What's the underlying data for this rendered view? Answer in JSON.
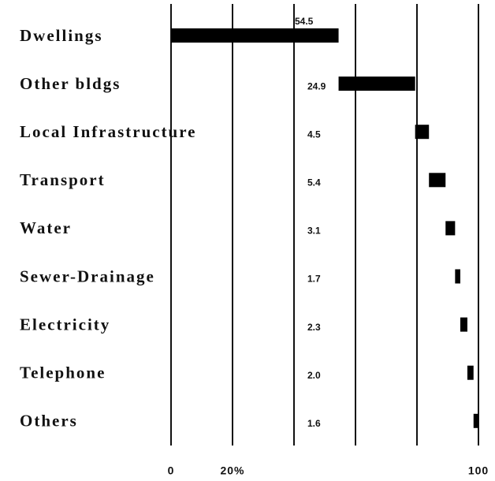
{
  "chart_data": {
    "type": "waterfall",
    "categories": [
      "Dwellings",
      "Other bldgs",
      "Local Infrastructure",
      "Transport",
      "Water",
      "Sewer-Drainage",
      "Electricity",
      "Telephone",
      "Others"
    ],
    "values": [
      54.5,
      24.9,
      4.5,
      5.4,
      3.1,
      1.7,
      2.3,
      2.0,
      1.6
    ],
    "value_labels": [
      "54.5",
      "24.9",
      "4.5",
      "5.4",
      "3.1",
      "1.7",
      "2.3",
      "2.0",
      "1.6"
    ],
    "color": "#000000",
    "xlim": [
      0,
      100
    ],
    "xticks": [
      0,
      {
        "value": 20,
        "label": "20%"
      },
      {
        "value": 40,
        "label": null
      },
      {
        "value": 60,
        "label": null
      },
      {
        "value": 80,
        "label": null
      },
      100
    ],
    "grid": true
  }
}
